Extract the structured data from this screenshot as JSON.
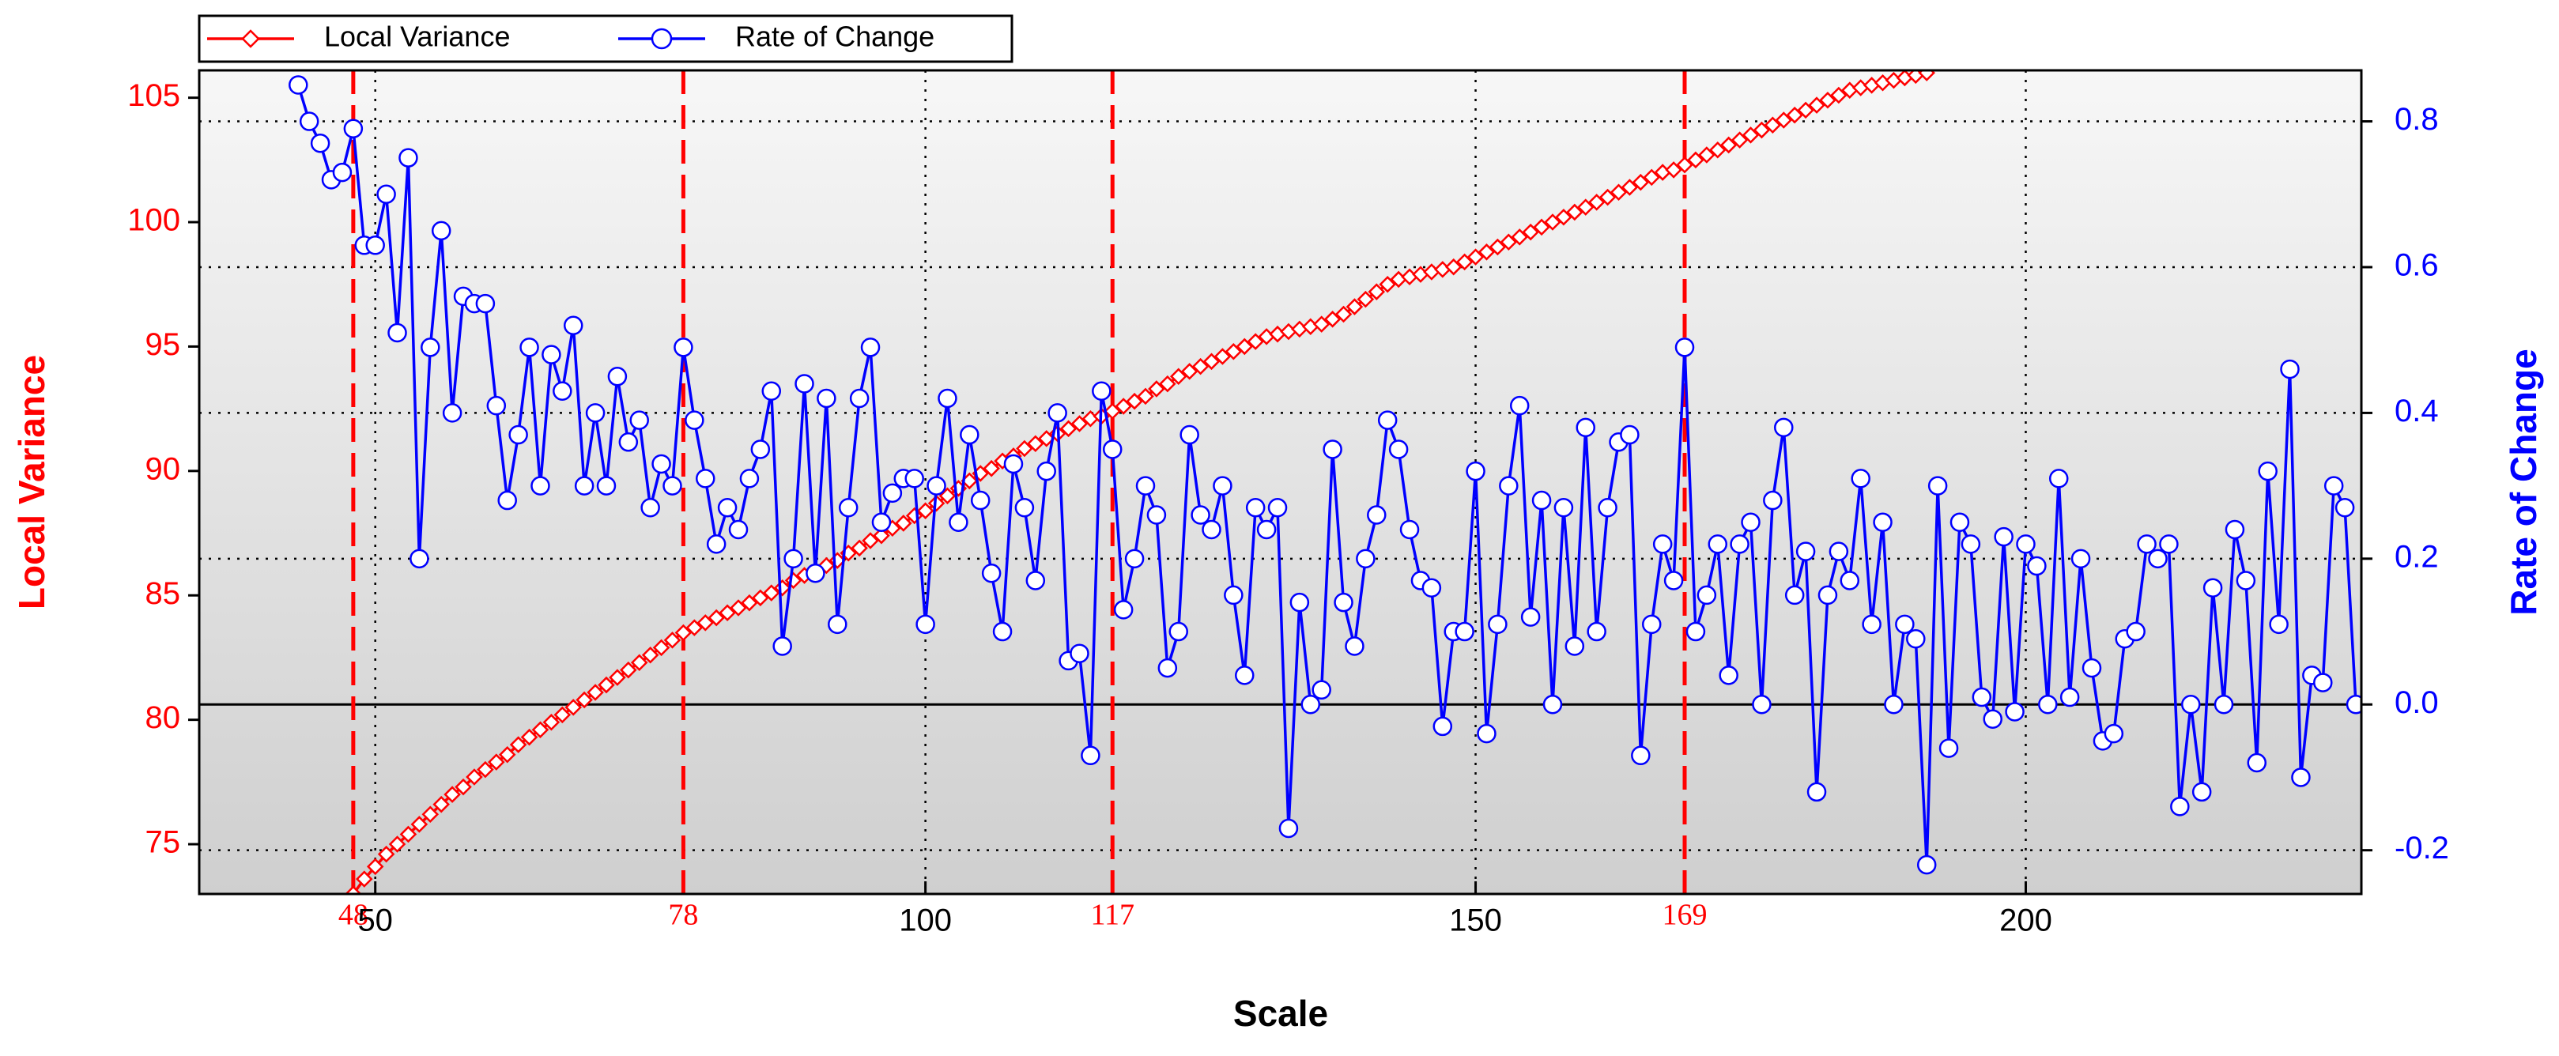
{
  "chart_data": {
    "type": "line",
    "x_label": "Scale",
    "y_label": "Local Variance",
    "y2_label": "Rate of Change",
    "xlim": [
      34,
      230.5
    ],
    "xticks": [
      50,
      100,
      150,
      200
    ],
    "ylim": [
      73,
      106.1
    ],
    "yticks": [
      75,
      80,
      85,
      90,
      95,
      100,
      105
    ],
    "y2lim": [
      -0.26,
      0.87
    ],
    "y2ticks": [
      -0.2,
      {
        "value": 0,
        "label": "0.0"
      },
      0.2,
      0.4,
      0.6,
      0.8
    ],
    "grid": true,
    "legend": "top-left",
    "y_color": "#ff0000",
    "y2_color": "#0000ff",
    "reference_line_y2": 0,
    "vlines": [
      48,
      78,
      117,
      169
    ],
    "vline_color": "#ff0000",
    "series": [
      {
        "name": "Local Variance",
        "color": "#ff0000",
        "marker": "diamond",
        "axis": "y",
        "x": [
          48,
          49,
          50,
          51,
          52,
          53,
          54,
          55,
          56,
          57,
          58,
          59,
          60,
          61,
          62,
          63,
          64,
          65,
          66,
          67,
          68,
          69,
          70,
          71,
          72,
          73,
          74,
          75,
          76,
          77,
          78,
          79,
          80,
          81,
          82,
          83,
          84,
          85,
          86,
          87,
          88,
          89,
          90,
          91,
          92,
          93,
          94,
          95,
          96,
          97,
          98,
          99,
          100,
          101,
          102,
          103,
          104,
          105,
          106,
          107,
          108,
          109,
          110,
          111,
          112,
          113,
          114,
          115,
          116,
          117,
          118,
          119,
          120,
          121,
          122,
          123,
          124,
          125,
          126,
          127,
          128,
          129,
          130,
          131,
          132,
          133,
          134,
          135,
          136,
          137,
          138,
          139,
          140,
          141,
          142,
          143,
          144,
          145,
          146,
          147,
          148,
          149,
          150,
          151,
          152,
          153,
          154,
          155,
          156,
          157,
          158,
          159,
          160,
          161,
          162,
          163,
          164,
          165,
          166,
          167,
          168,
          169,
          170,
          171,
          172,
          173,
          174,
          175,
          176,
          177,
          178,
          179,
          180,
          181,
          182,
          183,
          184,
          185,
          186,
          187,
          188,
          189,
          190,
          191
        ],
        "values": [
          73.0,
          73.6,
          74.1,
          74.6,
          75.0,
          75.4,
          75.8,
          76.2,
          76.6,
          77.0,
          77.3,
          77.7,
          78.0,
          78.3,
          78.6,
          79.0,
          79.3,
          79.6,
          79.9,
          80.2,
          80.5,
          80.8,
          81.1,
          81.4,
          81.7,
          82.0,
          82.3,
          82.6,
          82.9,
          83.2,
          83.5,
          83.7,
          83.9,
          84.1,
          84.3,
          84.5,
          84.7,
          84.9,
          85.1,
          85.3,
          85.6,
          85.8,
          86.0,
          86.2,
          86.4,
          86.7,
          86.9,
          87.2,
          87.4,
          87.7,
          87.9,
          88.2,
          88.4,
          88.7,
          89.0,
          89.3,
          89.6,
          89.9,
          90.1,
          90.4,
          90.6,
          90.9,
          91.1,
          91.3,
          91.5,
          91.7,
          91.9,
          92.1,
          92.2,
          92.4,
          92.6,
          92.8,
          93.0,
          93.3,
          93.5,
          93.8,
          94.0,
          94.2,
          94.4,
          94.6,
          94.8,
          95.0,
          95.2,
          95.4,
          95.5,
          95.6,
          95.7,
          95.8,
          95.9,
          96.1,
          96.3,
          96.6,
          96.9,
          97.2,
          97.5,
          97.7,
          97.8,
          97.9,
          98.0,
          98.1,
          98.2,
          98.4,
          98.6,
          98.8,
          99.0,
          99.2,
          99.4,
          99.6,
          99.8,
          100.0,
          100.2,
          100.4,
          100.6,
          100.8,
          101.0,
          101.2,
          101.4,
          101.6,
          101.8,
          102.0,
          102.1,
          102.3,
          102.5,
          102.7,
          102.9,
          103.1,
          103.3,
          103.5,
          103.7,
          103.9,
          104.1,
          104.3,
          104.5,
          104.7,
          104.9,
          105.1,
          105.3,
          105.4,
          105.5,
          105.6,
          105.7,
          105.8,
          105.9,
          106.0
        ]
      },
      {
        "name": "Rate of Change",
        "color": "#0000ff",
        "marker": "circle",
        "axis": "y2",
        "x": [
          43,
          44,
          45,
          46,
          47,
          48,
          49,
          50,
          51,
          52,
          53,
          54,
          55,
          56,
          57,
          58,
          59,
          60,
          61,
          62,
          63,
          64,
          65,
          66,
          67,
          68,
          69,
          70,
          71,
          72,
          73,
          74,
          75,
          76,
          77,
          78,
          79,
          80,
          81,
          82,
          83,
          84,
          85,
          86,
          87,
          88,
          89,
          90,
          91,
          92,
          93,
          94,
          95,
          96,
          97,
          98,
          99,
          100,
          101,
          102,
          103,
          104,
          105,
          106,
          107,
          108,
          109,
          110,
          111,
          112,
          113,
          114,
          115,
          116,
          117,
          118,
          119,
          120,
          121,
          122,
          123,
          124,
          125,
          126,
          127,
          128,
          129,
          130,
          131,
          132,
          133,
          134,
          135,
          136,
          137,
          138,
          139,
          140,
          141,
          142,
          143,
          144,
          145,
          146,
          147,
          148,
          149,
          150,
          151,
          152,
          153,
          154,
          155,
          156,
          157,
          158,
          159,
          160,
          161,
          162,
          163,
          164,
          165,
          166,
          167,
          168,
          169,
          170,
          171,
          172,
          173,
          174,
          175,
          176,
          177,
          178,
          179,
          180,
          181,
          182,
          183,
          184,
          185,
          186,
          187,
          188,
          189,
          190,
          191,
          192,
          193,
          194,
          195,
          196,
          197,
          198,
          199,
          200,
          201,
          202,
          203,
          204,
          205,
          206,
          207,
          208,
          209,
          210,
          211,
          212,
          213,
          214,
          215,
          216,
          217,
          218,
          219,
          220,
          221,
          222,
          223,
          224,
          225,
          226,
          227,
          228,
          229,
          230
        ],
        "values": [
          0.85,
          0.8,
          0.77,
          0.72,
          0.73,
          0.79,
          0.63,
          0.63,
          0.7,
          0.51,
          0.75,
          0.2,
          0.49,
          0.65,
          0.4,
          0.56,
          0.55,
          0.55,
          0.41,
          0.28,
          0.37,
          0.49,
          0.3,
          0.48,
          0.43,
          0.52,
          0.3,
          0.4,
          0.3,
          0.45,
          0.36,
          0.39,
          0.27,
          0.33,
          0.3,
          0.49,
          0.39,
          0.31,
          0.22,
          0.27,
          0.24,
          0.31,
          0.35,
          0.43,
          0.08,
          0.2,
          0.44,
          0.18,
          0.42,
          0.11,
          0.27,
          0.42,
          0.49,
          0.25,
          0.29,
          0.31,
          0.31,
          0.11,
          0.3,
          0.42,
          0.25,
          0.37,
          0.28,
          0.18,
          0.1,
          0.33,
          0.27,
          0.17,
          0.32,
          0.4,
          0.06,
          0.07,
          -0.07,
          0.43,
          0.35,
          0.13,
          0.2,
          0.3,
          0.26,
          0.05,
          0.1,
          0.37,
          0.26,
          0.24,
          0.3,
          0.15,
          0.04,
          0.27,
          0.24,
          0.27,
          -0.17,
          0.14,
          0.0,
          0.02,
          0.35,
          0.14,
          0.08,
          0.2,
          0.26,
          0.39,
          0.35,
          0.24,
          0.17,
          0.16,
          -0.03,
          0.1,
          0.1,
          0.32,
          -0.04,
          0.11,
          0.3,
          0.41,
          0.12,
          0.28,
          0.0,
          0.27,
          0.08,
          0.38,
          0.1,
          0.27,
          0.36,
          0.37,
          -0.07,
          0.11,
          0.22,
          0.17,
          0.49,
          0.1,
          0.15,
          0.22,
          0.04,
          0.22,
          0.25,
          0.0,
          0.28,
          0.38,
          0.15,
          0.21,
          -0.12,
          0.15,
          0.21,
          0.17,
          0.31,
          0.11,
          0.25,
          0.0,
          0.11,
          0.09,
          -0.22,
          0.3,
          -0.06,
          0.25,
          0.22,
          0.01,
          -0.02,
          0.23,
          -0.01,
          0.22,
          0.19,
          0.0,
          0.31,
          0.01,
          0.2,
          0.05,
          -0.05,
          -0.04,
          0.09,
          0.1,
          0.22,
          0.2,
          0.22,
          -0.14,
          0.0,
          -0.12,
          0.16,
          0.0,
          0.24,
          0.17,
          -0.08,
          0.32,
          0.11,
          0.46,
          -0.1,
          0.04,
          0.03,
          0.3,
          0.27,
          0.0
        ]
      }
    ]
  }
}
